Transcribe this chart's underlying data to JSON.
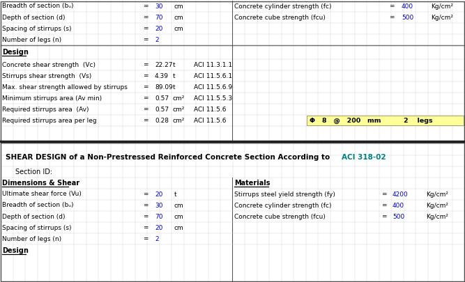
{
  "white": "#ffffff",
  "yellow": "#ffff99",
  "blue_val": "#0000cc",
  "teal": "#008080",
  "black": "#000000",
  "grid_col": "#d0d0d0",
  "border_col": "#505050",
  "sep_col": "#202020",
  "top_rows": [
    {
      "label": "Breadth of section (bᵤ)",
      "val": "30",
      "unit": "cm",
      "rl": "Concrete cylinder strength (fc)",
      "rv": "400",
      "ru": "Kg/cm²"
    },
    {
      "label": "Depth of section (d)",
      "val": "70",
      "unit": "cm",
      "rl": "Concrete cube strength (fcu)",
      "rv": "500",
      "ru": "Kg/cm²"
    },
    {
      "label": "Spacing of stirrups (s)",
      "val": "20",
      "unit": "cm",
      "rl": "",
      "rv": "",
      "ru": ""
    },
    {
      "label": "Number of legs (n)",
      "val": "2",
      "unit": "",
      "rl": "",
      "rv": "",
      "ru": ""
    }
  ],
  "design_rows": [
    {
      "label": "Concrete shear strength  (Vc)",
      "val": "22.27",
      "unit": "t",
      "ref": "ACI 11.3.1.1",
      "highlight": false
    },
    {
      "label": "Stirrups shear strength  (Vs)",
      "val": "4.39",
      "unit": "t",
      "ref": "ACI 11.5.6.1",
      "highlight": false
    },
    {
      "label": "Max. shear strength allowed by stirrups",
      "val": "89.09",
      "unit": "t",
      "ref": "ACI 11.5.6.9",
      "highlight": false
    },
    {
      "label": "Minimum stirrups area (Av min)",
      "val": "0.57",
      "unit": "cm²",
      "ref": "ACI 11.5.5.3",
      "highlight": false
    },
    {
      "label": "Required stirrups area  (Av)",
      "val": "0.57",
      "unit": "cm²",
      "ref": "ACI 11.5.6",
      "highlight": false
    },
    {
      "label": "Required stirrups area per leg",
      "val": "0.28",
      "unit": "cm²",
      "ref": "ACI 11.5.6",
      "highlight": true,
      "htext": "Φ   8   @   200   mm          2    legs"
    }
  ],
  "title_black": "SHEAR DESIGN of a Non-Prestressed Reinforced Concrete Section According to ",
  "title_teal": "ACI 318-02",
  "section_id": "Section ID:",
  "dim_label": "Dimensions & Shear",
  "mat_label": "Materials",
  "bot_left_rows": [
    {
      "label": "Ultimate shear force (Vu)",
      "val": "20",
      "unit": "t"
    },
    {
      "label": "Breadth of section (bᵤ)",
      "val": "30",
      "unit": "cm"
    },
    {
      "label": "Depth of section (d)",
      "val": "70",
      "unit": "cm"
    },
    {
      "label": "Spacing of stirrups (s)",
      "val": "20",
      "unit": "cm"
    },
    {
      "label": "Number of legs (n)",
      "val": "2",
      "unit": ""
    }
  ],
  "bot_right_rows": [
    {
      "label": "Stirrups steel yield strength (fy)",
      "val": "4200",
      "unit": "Kg/cm²"
    },
    {
      "label": "Concrete cylinder strength (fc)",
      "val": "400",
      "unit": "Kg/cm²"
    },
    {
      "label": "Concrete cube strength (fcu)",
      "val": "500",
      "unit": "Kg/cm²"
    }
  ],
  "design_label": "Design"
}
